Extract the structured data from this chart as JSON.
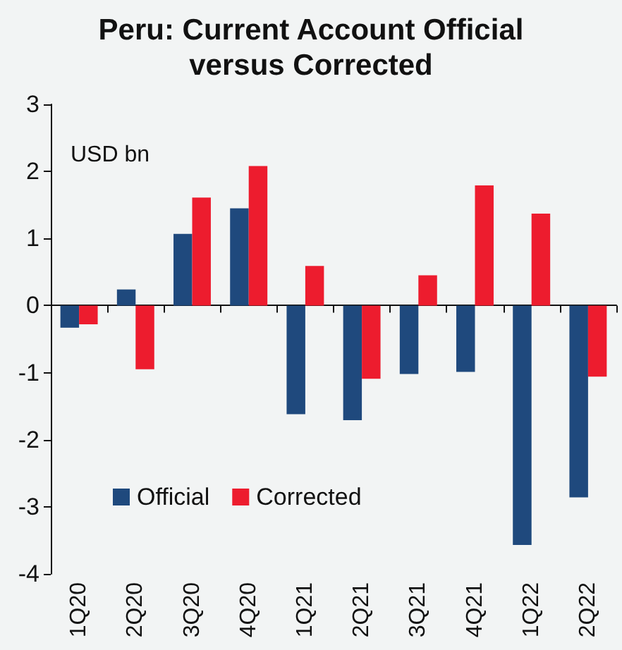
{
  "chart_data": {
    "type": "bar",
    "title": "Peru: Current Account Official\nversus Corrected",
    "ylabel": "USD bn",
    "categories": [
      "1Q20",
      "2Q20",
      "3Q20",
      "4Q20",
      "1Q21",
      "2Q21",
      "3Q21",
      "4Q21",
      "1Q22",
      "2Q22"
    ],
    "series": [
      {
        "name": "Official",
        "color": "#1f497d",
        "values": [
          -0.33,
          0.24,
          1.07,
          1.45,
          -1.62,
          -1.71,
          -1.02,
          -0.99,
          -3.57,
          -2.86
        ]
      },
      {
        "name": "Corrected",
        "color": "#ed1c2e",
        "values": [
          -0.28,
          -0.95,
          1.61,
          2.08,
          0.59,
          -1.09,
          0.45,
          1.79,
          1.37,
          -1.06
        ]
      }
    ],
    "ylim": [
      -4,
      3
    ],
    "yticks": [
      -4,
      -3,
      -2,
      -1,
      0,
      1,
      2,
      3
    ],
    "legend": "bottom left"
  }
}
